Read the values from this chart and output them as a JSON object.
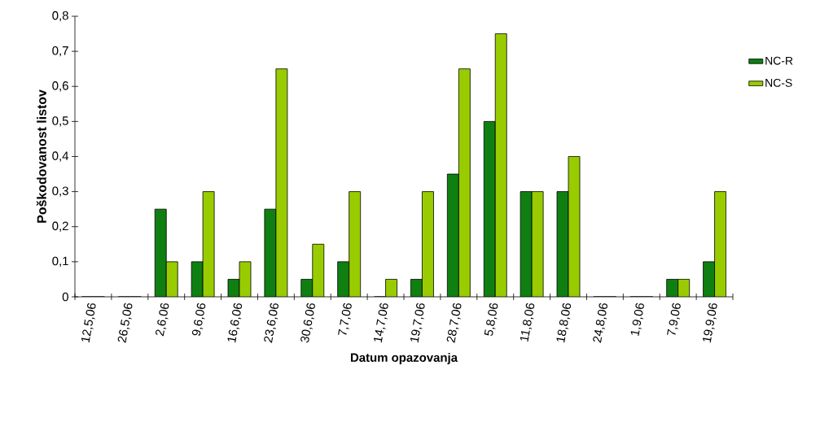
{
  "chart_data": {
    "type": "bar",
    "xlabel": "Datum opazovanja",
    "ylabel": "Poškodovanost listov",
    "categories": [
      "12,5,06",
      "26,5,06",
      "2,6,06",
      "9,6,06",
      "16,6,06",
      "23,6,06",
      "30,6,06",
      "7,7,06",
      "14,7,06",
      "19,7,06",
      "28,7,06",
      "5,8,06",
      "11,8,06",
      "18,8,06",
      "24,8,06",
      "1,9,06",
      "7,9,06",
      "19,9,06"
    ],
    "series": [
      {
        "name": "NC-R",
        "color": "#0f7f12",
        "values": [
          0,
          0,
          0.25,
          0.1,
          0.05,
          0.25,
          0.05,
          0.1,
          0,
          0.05,
          0.35,
          0.5,
          0.3,
          0.3,
          0,
          0,
          0.05,
          0.1
        ]
      },
      {
        "name": "NC-S",
        "color": "#99cc00",
        "values": [
          0,
          0,
          0.1,
          0.3,
          0.1,
          0.65,
          0.15,
          0.3,
          0.05,
          0.3,
          0.65,
          0.75,
          0.3,
          0.4,
          0,
          0,
          0.05,
          0.3
        ]
      }
    ],
    "ylim": [
      0,
      0.8
    ],
    "yticks": [
      {
        "value": 0,
        "label": "0"
      },
      {
        "value": 0.1,
        "label": "0,1"
      },
      {
        "value": 0.2,
        "label": "0,2"
      },
      {
        "value": 0.3,
        "label": "0,3"
      },
      {
        "value": 0.4,
        "label": "0,4"
      },
      {
        "value": 0.5,
        "label": "0,5"
      },
      {
        "value": 0.6,
        "label": "0,6"
      },
      {
        "value": 0.7,
        "label": "0,7"
      },
      {
        "value": 0.8,
        "label": "0,8"
      }
    ],
    "grid": false,
    "legend": "right"
  }
}
